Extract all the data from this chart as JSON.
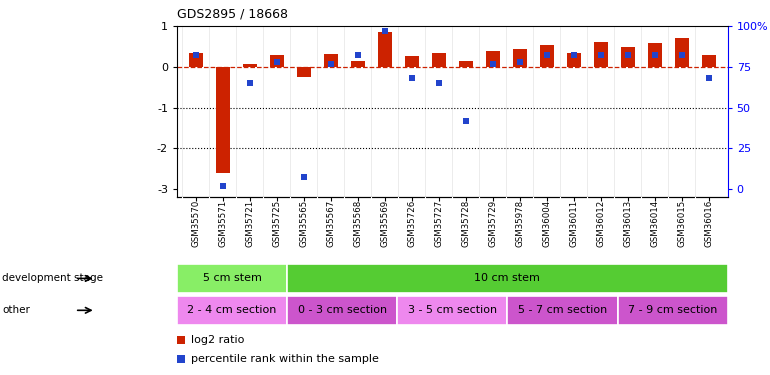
{
  "title": "GDS2895 / 18668",
  "categories": [
    "GSM35570",
    "GSM35571",
    "GSM35721",
    "GSM35725",
    "GSM35565",
    "GSM35567",
    "GSM35568",
    "GSM35569",
    "GSM35726",
    "GSM35727",
    "GSM35728",
    "GSM35729",
    "GSM35978",
    "GSM36004",
    "GSM36011",
    "GSM36012",
    "GSM36013",
    "GSM36014",
    "GSM36015",
    "GSM36016"
  ],
  "log2_ratio": [
    0.35,
    -2.6,
    0.08,
    0.28,
    -0.25,
    0.32,
    0.15,
    0.85,
    0.27,
    0.35,
    0.15,
    0.38,
    0.45,
    0.55,
    0.35,
    0.62,
    0.48,
    0.58,
    0.72,
    0.28
  ],
  "percentile": [
    82,
    2,
    65,
    78,
    7,
    77,
    82,
    97,
    68,
    65,
    42,
    77,
    78,
    82,
    82,
    82,
    82,
    82,
    82,
    68
  ],
  "ylim_left": [
    -3.2,
    1.0
  ],
  "yticks_left": [
    -3,
    -2,
    -1,
    0,
    1
  ],
  "yticks_right": [
    0,
    25,
    50,
    75,
    100
  ],
  "yticklabels_right": [
    "0",
    "25",
    "50",
    "75",
    "100%"
  ],
  "hline_y": 0.0,
  "dotted_lines": [
    -1.0,
    -2.0
  ],
  "bar_color_red": "#cc2200",
  "bar_color_blue": "#2244cc",
  "dashed_line_color": "#cc2200",
  "dev_stage_groups": [
    {
      "label": "5 cm stem",
      "start": 0,
      "end": 3,
      "color": "#88ee66"
    },
    {
      "label": "10 cm stem",
      "start": 4,
      "end": 19,
      "color": "#55cc33"
    }
  ],
  "other_groups": [
    {
      "label": "2 - 4 cm section",
      "start": 0,
      "end": 3,
      "color": "#ee88ee"
    },
    {
      "label": "0 - 3 cm section",
      "start": 4,
      "end": 7,
      "color": "#cc55cc"
    },
    {
      "label": "3 - 5 cm section",
      "start": 8,
      "end": 11,
      "color": "#ee88ee"
    },
    {
      "label": "5 - 7 cm section",
      "start": 12,
      "end": 15,
      "color": "#cc55cc"
    },
    {
      "label": "7 - 9 cm section",
      "start": 16,
      "end": 19,
      "color": "#cc55cc"
    }
  ],
  "legend_items": [
    {
      "label": "log2 ratio",
      "color": "#cc2200"
    },
    {
      "label": "percentile rank within the sample",
      "color": "#2244cc"
    }
  ],
  "bar_width": 0.5,
  "figsize": [
    7.7,
    3.75
  ],
  "dpi": 100,
  "bg_color": "#ffffff"
}
